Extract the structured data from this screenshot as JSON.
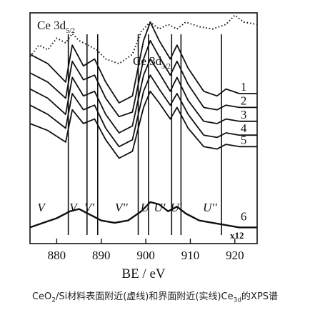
{
  "chart_data": {
    "type": "line",
    "title": "",
    "xlabel": "BE / eV",
    "ylabel": "",
    "xlim": [
      874,
      925
    ],
    "x_ticks": [
      880,
      890,
      900,
      910,
      920
    ],
    "x_tick_labels": [
      "880",
      "890",
      "900",
      "910",
      "920"
    ],
    "y_ticks_shown": false,
    "annotations": {
      "ce3d52": {
        "main": "Ce 3d",
        "sub": "5/2"
      },
      "ce3d32": {
        "main": "Ce 3d",
        "sub": "3/2"
      },
      "x12": "x12"
    },
    "peak_labels": [
      {
        "text": "V",
        "x": 876.5
      },
      {
        "text": "V",
        "x": 883.7
      },
      {
        "text": "V'",
        "x": 887.3
      },
      {
        "text": "V''",
        "x": 894.5
      },
      {
        "text": "U",
        "x": 899.8
      },
      {
        "text": "U'",
        "x": 903.1
      },
      {
        "text": "U'",
        "x": 906.8
      },
      {
        "text": "U''",
        "x": 914.4
      }
    ],
    "marker_lines_x": [
      882.6,
      886.8,
      889.2,
      898.3,
      900.6,
      905.8,
      907.9,
      917.0
    ],
    "series": [
      {
        "name": "1",
        "style": "solid",
        "x": [
          874,
          878,
          882,
          883.5,
          886,
          888.5,
          891,
          894,
          897,
          899.5,
          901,
          903,
          905.5,
          907,
          909.5,
          913,
          916,
          918,
          921,
          925
        ],
        "y": [
          0.82,
          0.78,
          0.7,
          0.86,
          0.77,
          0.8,
          0.7,
          0.61,
          0.64,
          0.88,
          0.96,
          0.88,
          0.8,
          0.86,
          0.76,
          0.66,
          0.64,
          0.67,
          0.65,
          0.65
        ]
      },
      {
        "name": "2",
        "style": "solid",
        "x": [
          874,
          878,
          882,
          883.5,
          886,
          888.5,
          891,
          894,
          897,
          899.5,
          901,
          903,
          905.5,
          907,
          909.5,
          913,
          916,
          918,
          921,
          925
        ],
        "y": [
          0.74,
          0.7,
          0.63,
          0.79,
          0.71,
          0.73,
          0.63,
          0.55,
          0.57,
          0.8,
          0.88,
          0.81,
          0.73,
          0.79,
          0.69,
          0.59,
          0.58,
          0.6,
          0.59,
          0.59
        ]
      },
      {
        "name": "3",
        "style": "solid",
        "x": [
          874,
          878,
          882,
          883.5,
          886,
          888.5,
          891,
          894,
          897,
          899.5,
          901,
          903,
          905.5,
          907,
          909.5,
          913,
          916,
          918,
          921,
          925
        ],
        "y": [
          0.67,
          0.63,
          0.56,
          0.72,
          0.64,
          0.66,
          0.56,
          0.48,
          0.51,
          0.73,
          0.8,
          0.74,
          0.66,
          0.72,
          0.62,
          0.53,
          0.52,
          0.54,
          0.53,
          0.53
        ]
      },
      {
        "name": "4",
        "style": "solid",
        "x": [
          874,
          878,
          882,
          883.5,
          886,
          888.5,
          891,
          894,
          897,
          899.5,
          901,
          903,
          905.5,
          907,
          909.5,
          913,
          916,
          918,
          921,
          925
        ],
        "y": [
          0.6,
          0.56,
          0.5,
          0.65,
          0.58,
          0.6,
          0.5,
          0.42,
          0.45,
          0.66,
          0.73,
          0.67,
          0.6,
          0.65,
          0.56,
          0.47,
          0.46,
          0.48,
          0.47,
          0.47
        ]
      },
      {
        "name": "5",
        "style": "solid",
        "x": [
          874,
          878,
          882,
          883.5,
          886,
          888.5,
          891,
          894,
          897,
          899.5,
          901,
          903,
          905.5,
          907,
          909.5,
          913,
          916,
          918,
          921,
          925
        ],
        "y": [
          0.52,
          0.49,
          0.44,
          0.58,
          0.52,
          0.54,
          0.45,
          0.37,
          0.4,
          0.59,
          0.66,
          0.61,
          0.54,
          0.59,
          0.5,
          0.42,
          0.41,
          0.43,
          0.42,
          0.42
        ]
      },
      {
        "name": "6",
        "style": "solid",
        "x": [
          874,
          877,
          880,
          883,
          885,
          887,
          890,
          893,
          896,
          899,
          901,
          903,
          905,
          907,
          909,
          912,
          915,
          918,
          921,
          925
        ],
        "y": [
          0.07,
          0.09,
          0.11,
          0.14,
          0.15,
          0.13,
          0.1,
          0.09,
          0.1,
          0.14,
          0.18,
          0.17,
          0.14,
          0.16,
          0.13,
          0.1,
          0.09,
          0.08,
          0.07,
          0.07
        ]
      },
      {
        "name": "",
        "style": "dotted",
        "x": [
          874,
          876,
          878,
          880,
          882,
          883.5,
          885,
          887,
          889,
          891,
          894,
          897,
          899,
          901,
          903,
          905,
          907,
          909,
          912,
          915,
          918,
          920,
          922,
          925
        ],
        "y": [
          0.81,
          0.86,
          0.84,
          0.89,
          0.87,
          0.91,
          0.88,
          0.86,
          0.84,
          0.8,
          0.78,
          0.82,
          0.92,
          0.96,
          0.93,
          0.95,
          0.93,
          0.96,
          0.94,
          0.93,
          0.95,
          0.99,
          0.96,
          0.95
        ]
      }
    ]
  },
  "caption": {
    "p1": "CeO",
    "s1": "2",
    "p2": "/Si材料表面附近(虚线)和界面附近(实线)Ce",
    "s2": "3d",
    "p3": "的XPS谱"
  }
}
